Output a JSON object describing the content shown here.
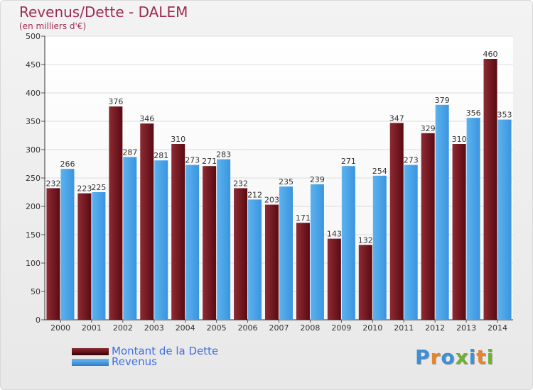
{
  "header": {
    "title": "Revenus/Dette - DALEM",
    "subtitle": "(en milliers d'€)"
  },
  "legend": [
    {
      "label": "Montant de la Dette",
      "color": "#6b0f1a"
    },
    {
      "label": "Revenus",
      "color": "#4aa3e6"
    }
  ],
  "logo": {
    "text": "Proxiti",
    "letter_colors": [
      "#3d8fd6",
      "#e8842b",
      "#3d8fd6",
      "#6fb233",
      "#3d8fd6",
      "#e8842b",
      "#6fb233"
    ]
  },
  "chart_data": {
    "type": "bar",
    "categories": [
      "2000",
      "2001",
      "2002",
      "2003",
      "2004",
      "2005",
      "2006",
      "2007",
      "2008",
      "2009",
      "2010",
      "2011",
      "2012",
      "2013",
      "2014"
    ],
    "series": [
      {
        "name": "Montant de la Dette",
        "color": "#6b0f1a",
        "values": [
          232,
          223,
          376,
          346,
          310,
          271,
          232,
          203,
          171,
          143,
          132,
          347,
          329,
          310,
          460
        ],
        "labels": [
          "232",
          "223",
          "376",
          "346",
          "310",
          "271",
          "232",
          "203",
          "171",
          "143",
          "132",
          "347",
          "329",
          "310",
          "460"
        ]
      },
      {
        "name": "Revenus",
        "color": "#4aa3e6",
        "values": [
          266,
          225,
          287,
          281,
          273,
          283,
          212,
          235,
          239,
          271,
          254,
          273,
          379,
          356,
          353
        ],
        "labels": [
          "266",
          "225",
          "287",
          "281",
          "273",
          "283",
          "212",
          "235",
          "239",
          "271",
          "254",
          "273",
          "379",
          "356",
          "353"
        ]
      }
    ],
    "yticks": [
      0,
      50,
      100,
      150,
      200,
      250,
      300,
      350,
      400,
      450,
      500
    ],
    "ylim": [
      0,
      500
    ],
    "grid": true,
    "legend_position": "bottom-left"
  }
}
